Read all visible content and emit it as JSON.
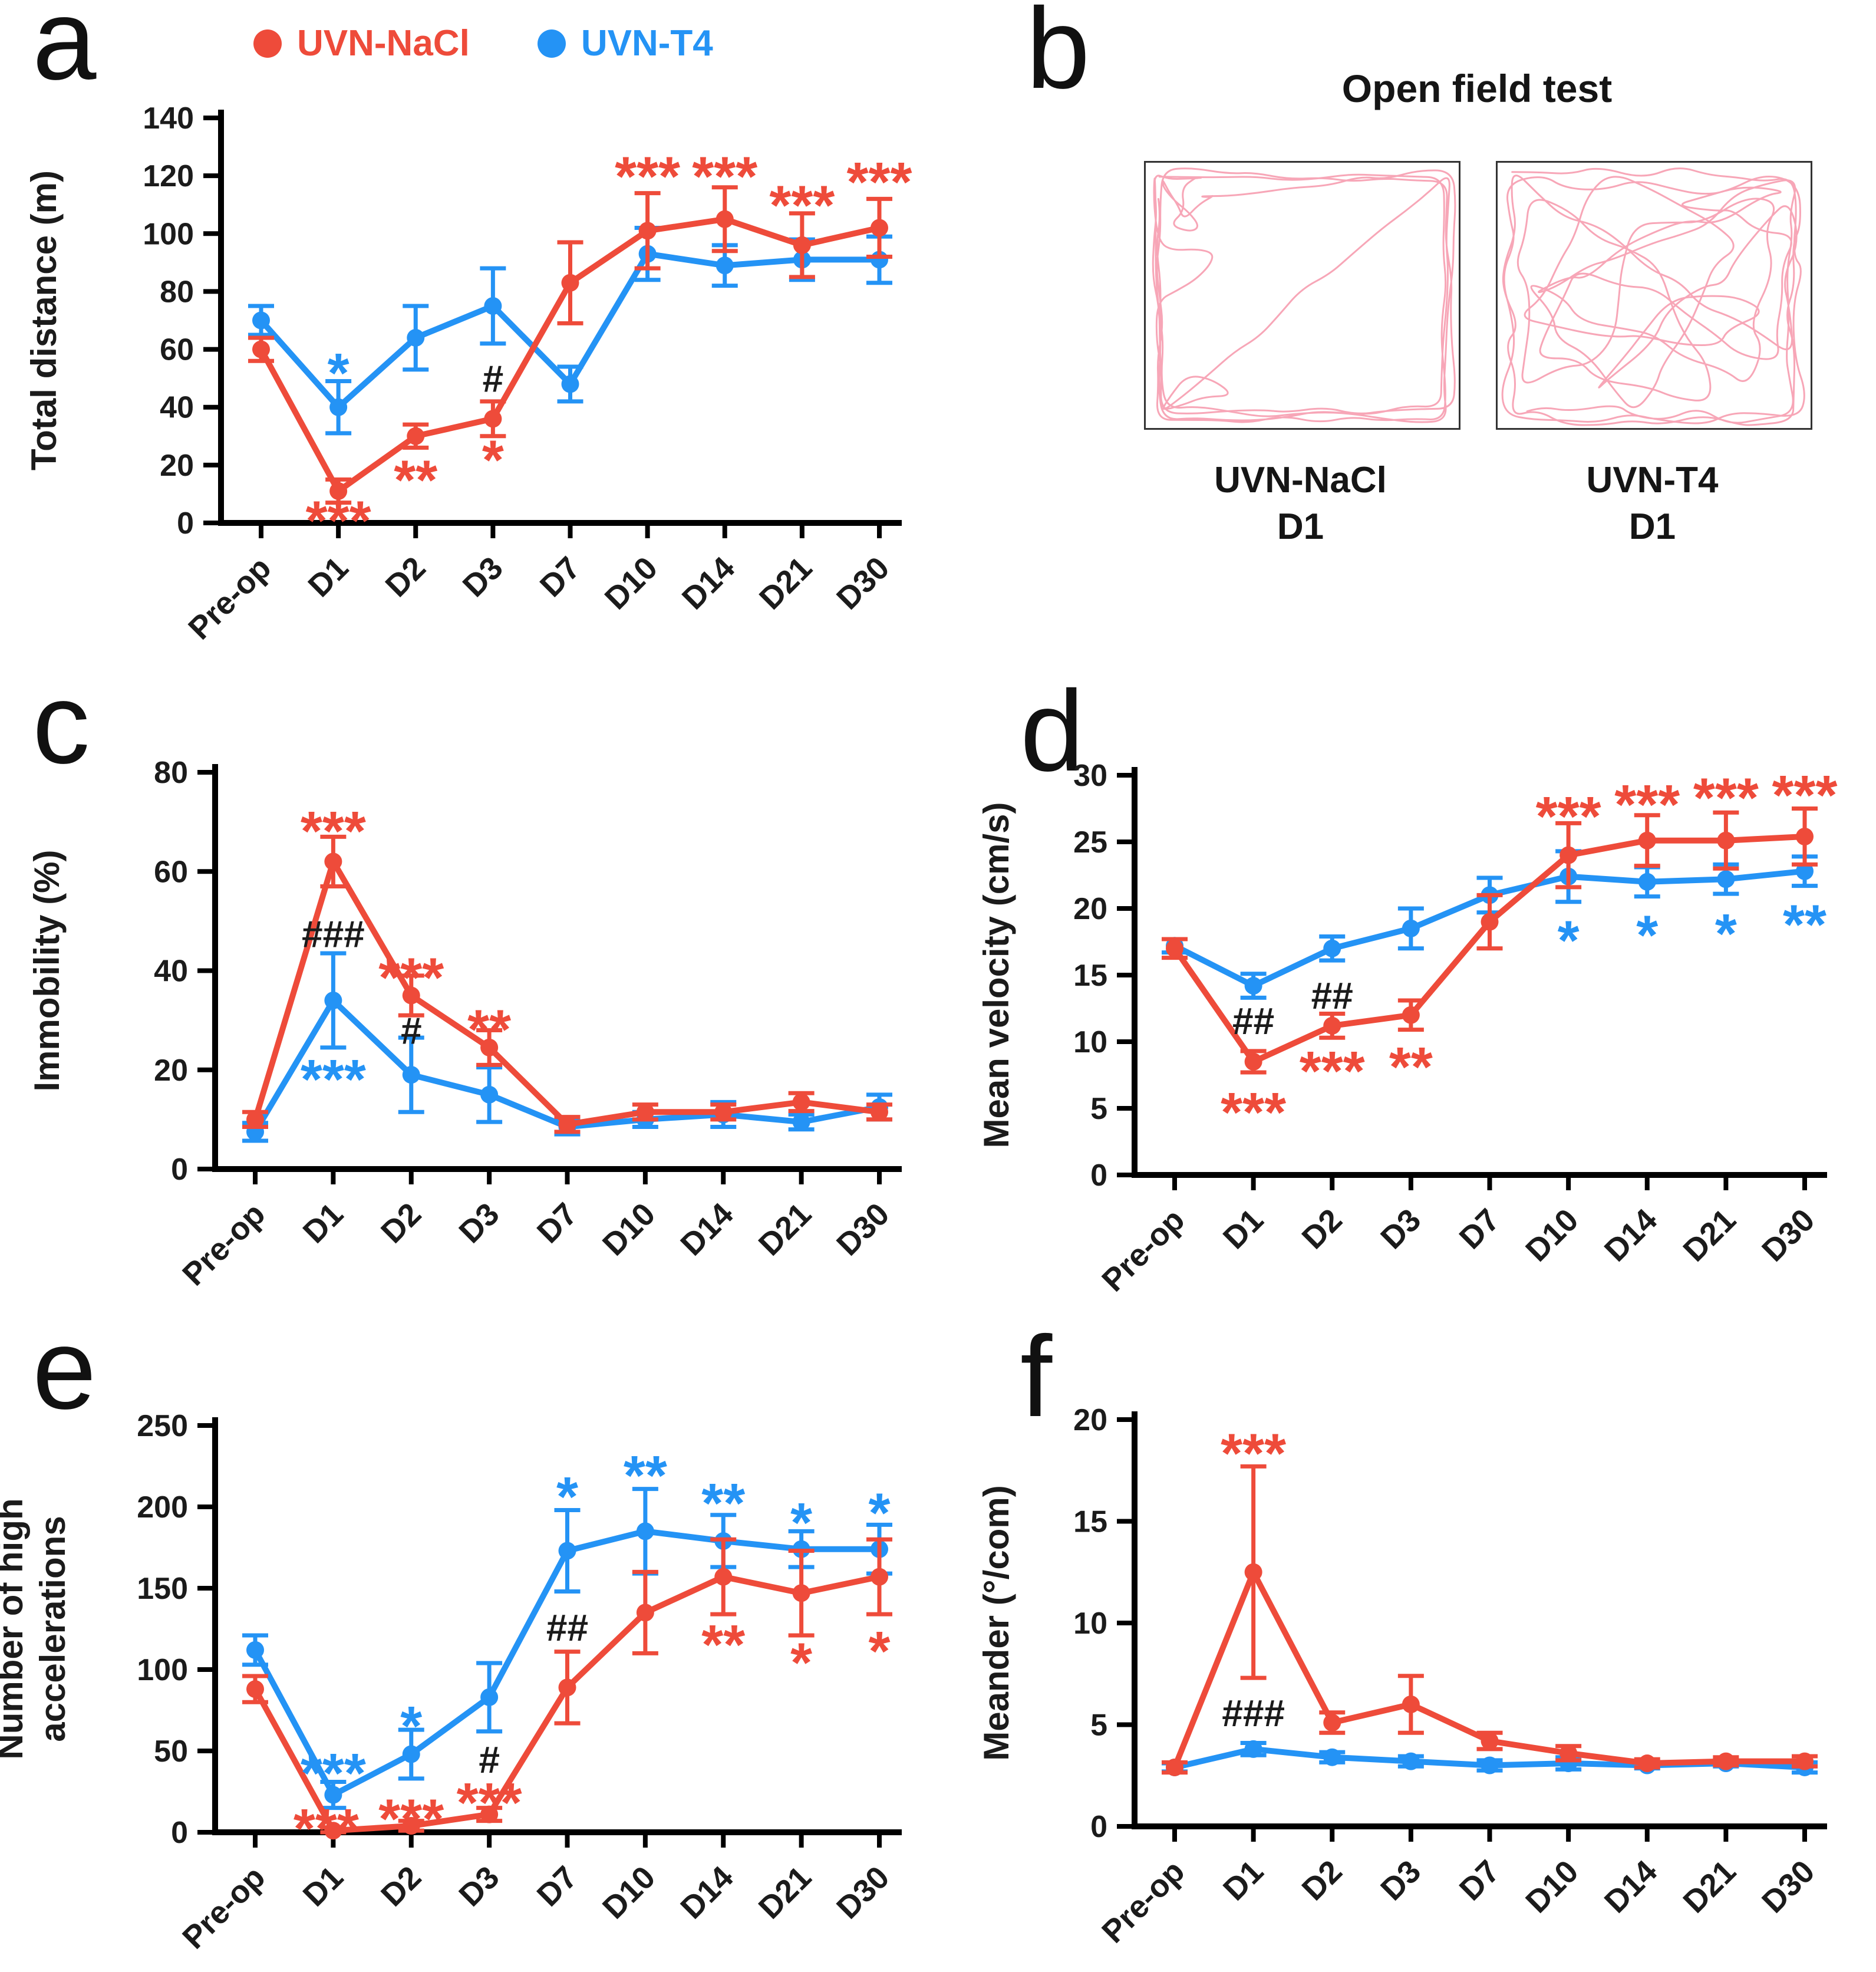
{
  "colors": {
    "red": "#ee4b3a",
    "blue": "#2493f5",
    "black": "#1b1b1b",
    "trace": "#ee3a5f"
  },
  "legend": {
    "items": [
      {
        "label": "UVN-NaCl",
        "color": "red"
      },
      {
        "label": "UVN-T4",
        "color": "blue"
      }
    ]
  },
  "panels": {
    "a": {
      "letter": "a"
    },
    "b": {
      "letter": "b",
      "title": "Open field test",
      "boxes": [
        {
          "group": "UVN-NaCl",
          "day": "D1",
          "style": "perimeter"
        },
        {
          "group": "UVN-T4",
          "day": "D1",
          "style": "explore"
        }
      ]
    },
    "c": {
      "letter": "c"
    },
    "d": {
      "letter": "d"
    },
    "e": {
      "letter": "e"
    },
    "f": {
      "letter": "f"
    }
  },
  "chart_data": [
    {
      "id": "a",
      "type": "line",
      "title": "",
      "ylabel": [
        "Total distance (m)"
      ],
      "ylim": [
        0,
        140
      ],
      "ytick_step": 20,
      "grid": false,
      "legend_position": "top",
      "categories": [
        "Pre-op",
        "D1",
        "D2",
        "D3",
        "D7",
        "D10",
        "D14",
        "D21",
        "D30"
      ],
      "series": [
        {
          "name": "UVN-NaCl",
          "color": "red",
          "values": [
            60,
            11,
            30,
            36,
            83,
            101,
            105,
            96,
            102
          ],
          "errors": [
            4,
            4,
            4,
            6,
            14,
            13,
            11,
            11,
            10
          ]
        },
        {
          "name": "UVN-T4",
          "color": "blue",
          "values": [
            70,
            40,
            64,
            75,
            48,
            93,
            89,
            91,
            91
          ],
          "errors": [
            5,
            9,
            11,
            13,
            6,
            9,
            7,
            7,
            8
          ]
        }
      ],
      "annotations": [
        {
          "cat": "D1",
          "y": 55,
          "text": "*",
          "color": "blue"
        },
        {
          "cat": "D1",
          "y": 4,
          "text": "***",
          "color": "red"
        },
        {
          "cat": "D2",
          "y": 18,
          "text": "**",
          "color": "red"
        },
        {
          "cat": "D3",
          "y": 25,
          "text": "*",
          "color": "red"
        },
        {
          "cat": "D3",
          "y": 50,
          "text": "#",
          "color": "black"
        },
        {
          "cat": "D10",
          "y": 123,
          "text": "***",
          "color": "red"
        },
        {
          "cat": "D14",
          "y": 123,
          "text": "***",
          "color": "red"
        },
        {
          "cat": "D21",
          "y": 113,
          "text": "***",
          "color": "red"
        },
        {
          "cat": "D30",
          "y": 121,
          "text": "***",
          "color": "red"
        }
      ]
    },
    {
      "id": "c",
      "type": "line",
      "title": "",
      "ylabel": [
        "Immobility (%)"
      ],
      "ylim": [
        0,
        80
      ],
      "ytick_step": 20,
      "grid": false,
      "categories": [
        "Pre-op",
        "D1",
        "D2",
        "D3",
        "D7",
        "D10",
        "D14",
        "D21",
        "D30"
      ],
      "series": [
        {
          "name": "UVN-NaCl",
          "color": "red",
          "values": [
            10,
            62,
            35,
            24.5,
            9,
            11.5,
            11.5,
            13.5,
            11.5
          ],
          "errors": [
            1.5,
            5,
            4,
            3.5,
            1.5,
            1.5,
            1.5,
            1.8,
            1.5
          ]
        },
        {
          "name": "UVN-T4",
          "color": "blue",
          "values": [
            7.5,
            34,
            19,
            15,
            8.5,
            10,
            11,
            9.5,
            12.5
          ],
          "errors": [
            1.8,
            9.5,
            7.5,
            5.5,
            1.5,
            1.5,
            2.5,
            1.5,
            2.5
          ]
        }
      ],
      "annotations": [
        {
          "cat": "D1",
          "y": 70,
          "text": "***",
          "color": "red"
        },
        {
          "cat": "D1",
          "y": 47.5,
          "text": "###",
          "color": "black"
        },
        {
          "cat": "D1",
          "y": 20,
          "text": "***",
          "color": "blue"
        },
        {
          "cat": "D2",
          "y": 40.5,
          "text": "***",
          "color": "red"
        },
        {
          "cat": "D2",
          "y": 28,
          "text": "#",
          "color": "black"
        },
        {
          "cat": "D3",
          "y": 30,
          "text": "**",
          "color": "red"
        }
      ]
    },
    {
      "id": "d",
      "type": "line",
      "title": "",
      "ylabel": [
        "Mean velocity (cm/s)"
      ],
      "ylim": [
        0,
        30
      ],
      "ytick_step": 5,
      "grid": false,
      "categories": [
        "Pre-op",
        "D1",
        "D2",
        "D3",
        "D7",
        "D10",
        "D14",
        "D21",
        "D30"
      ],
      "series": [
        {
          "name": "UVN-NaCl",
          "color": "red",
          "values": [
            17,
            8.5,
            11.2,
            12,
            19,
            24,
            25.1,
            25.1,
            25.4
          ],
          "errors": [
            0.7,
            0.8,
            0.9,
            1.1,
            2,
            2.4,
            1.9,
            2.1,
            2.1
          ]
        },
        {
          "name": "UVN-T4",
          "color": "blue",
          "values": [
            17.2,
            14.2,
            17,
            18.5,
            21,
            22.4,
            22,
            22.2,
            22.8
          ],
          "errors": [
            0.5,
            0.9,
            0.9,
            1.5,
            1.3,
            1.9,
            1.1,
            1.1,
            1.1
          ]
        }
      ],
      "annotations": [
        {
          "cat": "D1",
          "y": 11.6,
          "text": "##",
          "color": "black"
        },
        {
          "cat": "D1",
          "y": 5.4,
          "text": "***",
          "color": "red"
        },
        {
          "cat": "D2",
          "y": 13.5,
          "text": "##",
          "color": "black"
        },
        {
          "cat": "D2",
          "y": 8.5,
          "text": "***",
          "color": "red"
        },
        {
          "cat": "D3",
          "y": 8.8,
          "text": "**",
          "color": "red"
        },
        {
          "cat": "D10",
          "y": 27.6,
          "text": "***",
          "color": "red"
        },
        {
          "cat": "D10",
          "y": 18.3,
          "text": "*",
          "color": "blue"
        },
        {
          "cat": "D14",
          "y": 28.5,
          "text": "***",
          "color": "red"
        },
        {
          "cat": "D14",
          "y": 18.7,
          "text": "*",
          "color": "blue"
        },
        {
          "cat": "D21",
          "y": 29,
          "text": "***",
          "color": "red"
        },
        {
          "cat": "D21",
          "y": 18.8,
          "text": "*",
          "color": "blue"
        },
        {
          "cat": "D30",
          "y": 29.2,
          "text": "***",
          "color": "red"
        },
        {
          "cat": "D30",
          "y": 19.5,
          "text": "**",
          "color": "blue"
        }
      ]
    },
    {
      "id": "e",
      "type": "line",
      "title": "",
      "ylabel": [
        "Number of high",
        "accelerations"
      ],
      "ylim": [
        0,
        250
      ],
      "ytick_step": 50,
      "grid": false,
      "categories": [
        "Pre-op",
        "D1",
        "D2",
        "D3",
        "D7",
        "D10",
        "D14",
        "D21",
        "D30"
      ],
      "series": [
        {
          "name": "UVN-NaCl",
          "color": "red",
          "values": [
            88,
            1,
            4,
            11,
            89,
            135,
            157,
            147,
            157
          ],
          "errors": [
            8,
            2,
            3,
            4,
            22,
            25,
            23,
            26,
            23
          ]
        },
        {
          "name": "UVN-T4",
          "color": "blue",
          "values": [
            112,
            23,
            48,
            83,
            173,
            185,
            179,
            174,
            174
          ],
          "errors": [
            9,
            8,
            15,
            21,
            25,
            26,
            16,
            11,
            15
          ]
        }
      ],
      "annotations": [
        {
          "cat": "D1",
          "y": 42,
          "text": "***",
          "color": "blue"
        },
        {
          "cat": "D1",
          "y": 8,
          "text": "***",
          "color": "red",
          "dx": -12
        },
        {
          "cat": "D2",
          "y": 71,
          "text": "*",
          "color": "blue"
        },
        {
          "cat": "D2",
          "y": 14,
          "text": "***",
          "color": "red"
        },
        {
          "cat": "D3",
          "y": 45,
          "text": "#",
          "color": "black"
        },
        {
          "cat": "D3",
          "y": 24,
          "text": "***",
          "color": "red"
        },
        {
          "cat": "D7",
          "y": 212,
          "text": "*",
          "color": "blue"
        },
        {
          "cat": "D7",
          "y": 126,
          "text": "##",
          "color": "black"
        },
        {
          "cat": "D10",
          "y": 225,
          "text": "**",
          "color": "blue"
        },
        {
          "cat": "D14",
          "y": 208,
          "text": "**",
          "color": "blue"
        },
        {
          "cat": "D14",
          "y": 121,
          "text": "**",
          "color": "red"
        },
        {
          "cat": "D21",
          "y": 196,
          "text": "*",
          "color": "blue"
        },
        {
          "cat": "D21",
          "y": 110,
          "text": "*",
          "color": "red"
        },
        {
          "cat": "D30",
          "y": 202,
          "text": "*",
          "color": "blue"
        },
        {
          "cat": "D30",
          "y": 117,
          "text": "*",
          "color": "red"
        }
      ]
    },
    {
      "id": "f",
      "type": "line",
      "title": "",
      "ylabel": [
        "Meander (°/com)"
      ],
      "ylim": [
        0,
        20
      ],
      "ytick_step": 5,
      "grid": false,
      "categories": [
        "Pre-op",
        "D1",
        "D2",
        "D3",
        "D7",
        "D10",
        "D14",
        "D21",
        "D30"
      ],
      "series": [
        {
          "name": "UVN-NaCl",
          "color": "red",
          "values": [
            2.9,
            12.5,
            5.1,
            6.0,
            4.2,
            3.6,
            3.1,
            3.2,
            3.2
          ],
          "errors": [
            0.25,
            5.2,
            0.5,
            1.4,
            0.4,
            0.35,
            0.2,
            0.2,
            0.25
          ]
        },
        {
          "name": "UVN-T4",
          "color": "blue",
          "values": [
            2.9,
            3.8,
            3.4,
            3.2,
            3.0,
            3.1,
            3.0,
            3.1,
            2.9
          ],
          "errors": [
            0.2,
            0.3,
            0.25,
            0.25,
            0.25,
            0.3,
            0.15,
            0.15,
            0.25
          ]
        }
      ],
      "annotations": [
        {
          "cat": "D1",
          "y": 18.8,
          "text": "***",
          "color": "red"
        },
        {
          "cat": "D1",
          "y": 5.6,
          "text": "###",
          "color": "black"
        }
      ]
    }
  ]
}
